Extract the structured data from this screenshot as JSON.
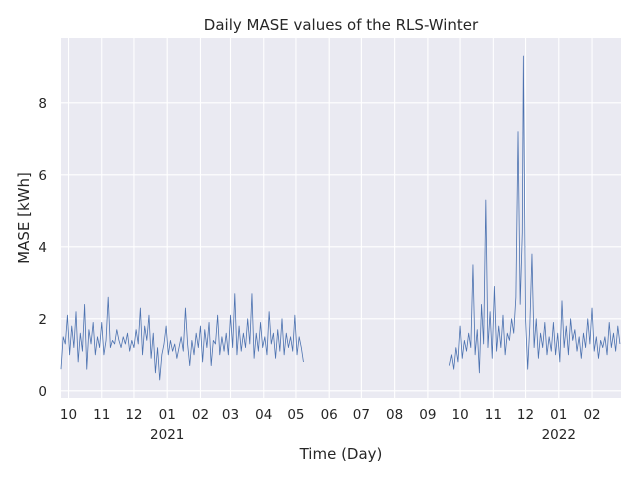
{
  "chart_data": {
    "type": "line",
    "title": "Daily MASE values of the RLS-Winter",
    "xlabel": "Time (Day)",
    "ylabel": "MASE [kWh]",
    "xlim": [
      "2020-09-24",
      "2022-02-28"
    ],
    "ylim": [
      -0.2,
      9.8
    ],
    "y_ticks": [
      0,
      2,
      4,
      6,
      8
    ],
    "x_ticks": [
      {
        "date": "2020-10-01",
        "label": "10"
      },
      {
        "date": "2020-11-01",
        "label": "11"
      },
      {
        "date": "2020-12-01",
        "label": "12"
      },
      {
        "date": "2021-01-01",
        "label": "01",
        "year": "2021"
      },
      {
        "date": "2021-02-01",
        "label": "02"
      },
      {
        "date": "2021-03-01",
        "label": "03"
      },
      {
        "date": "2021-04-01",
        "label": "04"
      },
      {
        "date": "2021-05-01",
        "label": "05"
      },
      {
        "date": "2021-06-01",
        "label": "06"
      },
      {
        "date": "2021-07-01",
        "label": "07"
      },
      {
        "date": "2021-08-01",
        "label": "08"
      },
      {
        "date": "2021-09-01",
        "label": "09"
      },
      {
        "date": "2021-10-01",
        "label": "10"
      },
      {
        "date": "2021-11-01",
        "label": "11"
      },
      {
        "date": "2021-12-01",
        "label": "12"
      },
      {
        "date": "2022-01-01",
        "label": "01",
        "year": "2022"
      },
      {
        "date": "2022-02-01",
        "label": "02"
      }
    ],
    "grid": true,
    "colors": {
      "line": "#4c72b0",
      "background": "#eaeaf2",
      "grid": "#ffffff"
    },
    "series": [
      {
        "points": [
          [
            "2020-09-24",
            0.6
          ],
          [
            "2020-09-26",
            1.5
          ],
          [
            "2020-09-28",
            1.3
          ],
          [
            "2020-09-30",
            2.1
          ],
          [
            "2020-10-02",
            1.0
          ],
          [
            "2020-10-04",
            1.8
          ],
          [
            "2020-10-06",
            1.2
          ],
          [
            "2020-10-08",
            2.2
          ],
          [
            "2020-10-10",
            0.8
          ],
          [
            "2020-10-12",
            1.6
          ],
          [
            "2020-10-14",
            1.1
          ],
          [
            "2020-10-16",
            2.4
          ],
          [
            "2020-10-18",
            0.6
          ],
          [
            "2020-10-20",
            1.7
          ],
          [
            "2020-10-22",
            1.3
          ],
          [
            "2020-10-24",
            1.9
          ],
          [
            "2020-10-26",
            1.0
          ],
          [
            "2020-10-28",
            1.5
          ],
          [
            "2020-10-30",
            1.2
          ],
          [
            "2020-11-01",
            1.9
          ],
          [
            "2020-11-03",
            1.0
          ],
          [
            "2020-11-05",
            1.4
          ],
          [
            "2020-11-07",
            2.6
          ],
          [
            "2020-11-09",
            1.2
          ],
          [
            "2020-11-11",
            1.4
          ],
          [
            "2020-11-13",
            1.3
          ],
          [
            "2020-11-15",
            1.7
          ],
          [
            "2020-11-17",
            1.4
          ],
          [
            "2020-11-19",
            1.2
          ],
          [
            "2020-11-21",
            1.5
          ],
          [
            "2020-11-23",
            1.3
          ],
          [
            "2020-11-25",
            1.6
          ],
          [
            "2020-11-27",
            1.1
          ],
          [
            "2020-11-29",
            1.4
          ],
          [
            "2020-12-01",
            1.2
          ],
          [
            "2020-12-03",
            1.7
          ],
          [
            "2020-12-05",
            1.3
          ],
          [
            "2020-12-07",
            2.3
          ],
          [
            "2020-12-09",
            1.0
          ],
          [
            "2020-12-11",
            1.8
          ],
          [
            "2020-12-13",
            1.4
          ],
          [
            "2020-12-15",
            2.1
          ],
          [
            "2020-12-17",
            0.9
          ],
          [
            "2020-12-19",
            1.6
          ],
          [
            "2020-12-21",
            0.5
          ],
          [
            "2020-12-23",
            1.2
          ],
          [
            "2020-12-25",
            0.3
          ],
          [
            "2020-12-27",
            1.0
          ],
          [
            "2020-12-29",
            1.3
          ],
          [
            "2020-12-31",
            1.8
          ],
          [
            "2021-01-02",
            1.0
          ],
          [
            "2021-01-04",
            1.4
          ],
          [
            "2021-01-06",
            1.1
          ],
          [
            "2021-01-08",
            1.3
          ],
          [
            "2021-01-10",
            0.9
          ],
          [
            "2021-01-12",
            1.2
          ],
          [
            "2021-01-14",
            1.5
          ],
          [
            "2021-01-16",
            1.1
          ],
          [
            "2021-01-18",
            2.3
          ],
          [
            "2021-01-20",
            1.3
          ],
          [
            "2021-01-22",
            0.7
          ],
          [
            "2021-01-24",
            1.4
          ],
          [
            "2021-01-26",
            1.0
          ],
          [
            "2021-01-28",
            1.6
          ],
          [
            "2021-01-30",
            1.2
          ],
          [
            "2021-02-01",
            1.8
          ],
          [
            "2021-02-03",
            0.8
          ],
          [
            "2021-02-05",
            1.7
          ],
          [
            "2021-02-07",
            1.2
          ],
          [
            "2021-02-09",
            1.9
          ],
          [
            "2021-02-11",
            0.7
          ],
          [
            "2021-02-13",
            1.4
          ],
          [
            "2021-02-15",
            1.3
          ],
          [
            "2021-02-17",
            2.1
          ],
          [
            "2021-02-19",
            1.0
          ],
          [
            "2021-02-21",
            1.5
          ],
          [
            "2021-02-23",
            1.1
          ],
          [
            "2021-02-25",
            1.6
          ],
          [
            "2021-02-27",
            1.0
          ],
          [
            "2021-03-01",
            2.1
          ],
          [
            "2021-03-03",
            1.2
          ],
          [
            "2021-03-05",
            2.7
          ],
          [
            "2021-03-07",
            1.0
          ],
          [
            "2021-03-09",
            1.8
          ],
          [
            "2021-03-11",
            1.1
          ],
          [
            "2021-03-13",
            1.6
          ],
          [
            "2021-03-15",
            1.2
          ],
          [
            "2021-03-17",
            2.0
          ],
          [
            "2021-03-19",
            1.3
          ],
          [
            "2021-03-21",
            2.7
          ],
          [
            "2021-03-23",
            0.9
          ],
          [
            "2021-03-25",
            1.6
          ],
          [
            "2021-03-27",
            1.1
          ],
          [
            "2021-03-29",
            1.9
          ],
          [
            "2021-03-31",
            1.2
          ],
          [
            "2021-04-02",
            1.5
          ],
          [
            "2021-04-04",
            1.0
          ],
          [
            "2021-04-06",
            2.2
          ],
          [
            "2021-04-08",
            1.3
          ],
          [
            "2021-04-10",
            1.6
          ],
          [
            "2021-04-12",
            0.9
          ],
          [
            "2021-04-14",
            1.7
          ],
          [
            "2021-04-16",
            1.1
          ],
          [
            "2021-04-18",
            2.0
          ],
          [
            "2021-04-20",
            1.0
          ],
          [
            "2021-04-22",
            1.6
          ],
          [
            "2021-04-24",
            1.2
          ],
          [
            "2021-04-26",
            1.5
          ],
          [
            "2021-04-28",
            1.1
          ],
          [
            "2021-04-30",
            2.1
          ],
          [
            "2021-05-02",
            1.0
          ],
          [
            "2021-05-04",
            1.5
          ],
          [
            "2021-05-06",
            1.2
          ],
          [
            "2021-05-08",
            0.8
          ],
          null,
          [
            "2021-09-21",
            0.7
          ],
          [
            "2021-09-23",
            1.0
          ],
          [
            "2021-09-25",
            0.6
          ],
          [
            "2021-09-27",
            1.2
          ],
          [
            "2021-09-29",
            0.8
          ],
          [
            "2021-10-01",
            1.8
          ],
          [
            "2021-10-03",
            0.9
          ],
          [
            "2021-10-05",
            1.4
          ],
          [
            "2021-10-07",
            1.1
          ],
          [
            "2021-10-09",
            1.6
          ],
          [
            "2021-10-11",
            1.2
          ],
          [
            "2021-10-13",
            3.5
          ],
          [
            "2021-10-15",
            1.0
          ],
          [
            "2021-10-17",
            1.7
          ],
          [
            "2021-10-19",
            0.5
          ],
          [
            "2021-10-21",
            2.4
          ],
          [
            "2021-10-23",
            1.3
          ],
          [
            "2021-10-25",
            5.3
          ],
          [
            "2021-10-27",
            1.2
          ],
          [
            "2021-10-29",
            2.2
          ],
          [
            "2021-10-31",
            0.9
          ],
          [
            "2021-11-02",
            2.9
          ],
          [
            "2021-11-04",
            1.1
          ],
          [
            "2021-11-06",
            1.8
          ],
          [
            "2021-11-08",
            1.2
          ],
          [
            "2021-11-10",
            2.1
          ],
          [
            "2021-11-12",
            1.0
          ],
          [
            "2021-11-14",
            1.6
          ],
          [
            "2021-11-16",
            1.4
          ],
          [
            "2021-11-18",
            2.0
          ],
          [
            "2021-11-20",
            1.6
          ],
          [
            "2021-11-22",
            2.6
          ],
          [
            "2021-11-24",
            7.2
          ],
          [
            "2021-11-26",
            2.4
          ],
          [
            "2021-11-28",
            4.4
          ],
          [
            "2021-11-29",
            9.3
          ],
          [
            "2021-12-01",
            2.0
          ],
          [
            "2021-12-03",
            0.6
          ],
          [
            "2021-12-05",
            1.8
          ],
          [
            "2021-12-07",
            3.8
          ],
          [
            "2021-12-09",
            1.2
          ],
          [
            "2021-12-11",
            2.0
          ],
          [
            "2021-12-13",
            0.9
          ],
          [
            "2021-12-15",
            1.6
          ],
          [
            "2021-12-17",
            1.2
          ],
          [
            "2021-12-19",
            1.9
          ],
          [
            "2021-12-21",
            1.0
          ],
          [
            "2021-12-23",
            1.5
          ],
          [
            "2021-12-25",
            1.1
          ],
          [
            "2021-12-27",
            1.9
          ],
          [
            "2021-12-29",
            1.0
          ],
          [
            "2021-12-31",
            1.6
          ],
          [
            "2022-01-02",
            0.8
          ],
          [
            "2022-01-04",
            2.5
          ],
          [
            "2022-01-06",
            1.2
          ],
          [
            "2022-01-08",
            1.8
          ],
          [
            "2022-01-10",
            1.0
          ],
          [
            "2022-01-12",
            2.0
          ],
          [
            "2022-01-14",
            1.4
          ],
          [
            "2022-01-16",
            1.7
          ],
          [
            "2022-01-18",
            1.1
          ],
          [
            "2022-01-20",
            1.5
          ],
          [
            "2022-01-22",
            0.9
          ],
          [
            "2022-01-24",
            1.6
          ],
          [
            "2022-01-26",
            1.2
          ],
          [
            "2022-01-28",
            2.0
          ],
          [
            "2022-01-30",
            1.3
          ],
          [
            "2022-02-01",
            2.3
          ],
          [
            "2022-02-03",
            1.1
          ],
          [
            "2022-02-05",
            1.5
          ],
          [
            "2022-02-07",
            0.9
          ],
          [
            "2022-02-09",
            1.4
          ],
          [
            "2022-02-11",
            1.2
          ],
          [
            "2022-02-13",
            1.5
          ],
          [
            "2022-02-15",
            1.0
          ],
          [
            "2022-02-17",
            1.9
          ],
          [
            "2022-02-19",
            1.2
          ],
          [
            "2022-02-21",
            1.6
          ],
          [
            "2022-02-23",
            1.1
          ],
          [
            "2022-02-25",
            1.8
          ],
          [
            "2022-02-27",
            1.3
          ]
        ]
      }
    ]
  }
}
